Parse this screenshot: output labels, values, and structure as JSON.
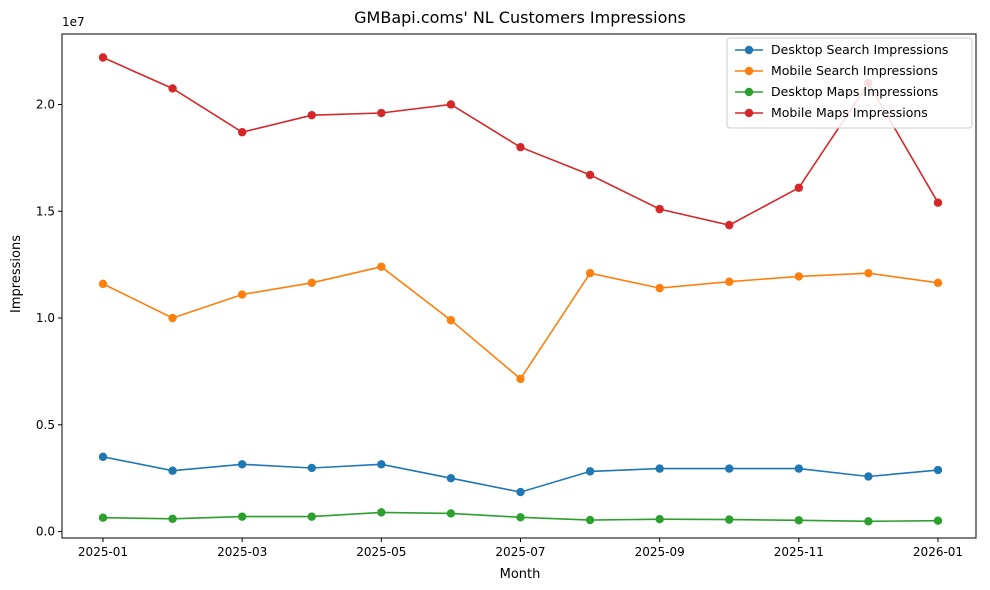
{
  "chart_data": {
    "type": "line",
    "title": "GMBapi.coms' NL Customers Impressions",
    "xlabel": "Month",
    "ylabel": "Impressions",
    "y_offset_label": "1e7",
    "y_scale": 10000000,
    "ylim": [
      -300000,
      23300000
    ],
    "yticks": [
      0,
      5000000,
      10000000,
      15000000,
      20000000
    ],
    "ytick_labels": [
      "0.0",
      "0.5",
      "1.0",
      "1.5",
      "2.0"
    ],
    "x": [
      "2025-01",
      "2025-02",
      "2025-03",
      "2025-04",
      "2025-05",
      "2025-06",
      "2025-07",
      "2025-08",
      "2025-09",
      "2025-10",
      "2025-11",
      "2025-12",
      "2026-01"
    ],
    "xticks": [
      "2025-01",
      "2025-03",
      "2025-05",
      "2025-07",
      "2025-09",
      "2025-11",
      "2026-01"
    ],
    "legend_position": "top-right",
    "grid": false,
    "series": [
      {
        "name": "Desktop Search Impressions",
        "color": "#1f77b4",
        "values": [
          3500000,
          2850000,
          3150000,
          2980000,
          3150000,
          2500000,
          1850000,
          2820000,
          2950000,
          2950000,
          2950000,
          2580000,
          2880000
        ]
      },
      {
        "name": "Mobile Search Impressions",
        "color": "#ff7f0e",
        "values": [
          11600000,
          10000000,
          11100000,
          11650000,
          12400000,
          9900000,
          7150000,
          12100000,
          11400000,
          11700000,
          11950000,
          12100000,
          11650000
        ]
      },
      {
        "name": "Desktop Maps Impressions",
        "color": "#2ca02c",
        "values": [
          650000,
          600000,
          700000,
          700000,
          900000,
          850000,
          670000,
          540000,
          580000,
          560000,
          530000,
          480000,
          510000
        ]
      },
      {
        "name": "Mobile Maps Impressions",
        "color": "#d62728",
        "values": [
          22200000,
          20750000,
          18700000,
          19500000,
          19600000,
          20000000,
          18000000,
          16700000,
          15100000,
          14350000,
          16100000,
          21000000,
          15400000
        ]
      }
    ]
  }
}
